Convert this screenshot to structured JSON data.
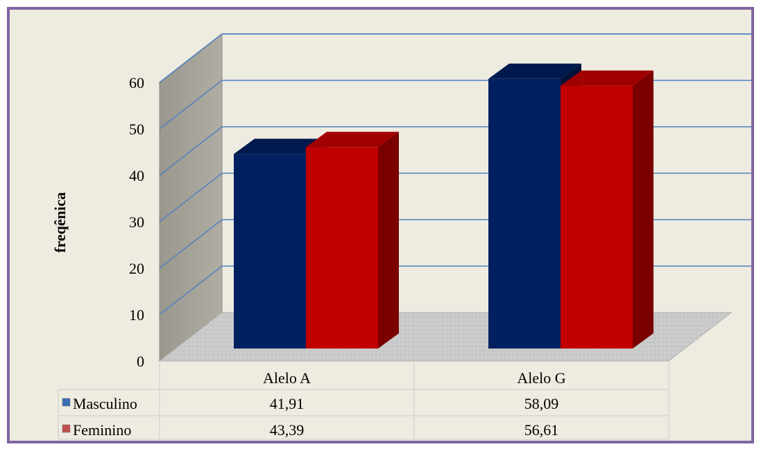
{
  "chart_data": {
    "type": "bar",
    "style": "3d-clustered-column-with-data-table",
    "categories": [
      "Alelo A",
      "Alelo G"
    ],
    "series": [
      {
        "name": "Masculino",
        "values": [
          "41,91",
          "58,09"
        ],
        "numeric": [
          41.91,
          58.09
        ],
        "color": "#002060",
        "side_color": "#00123a",
        "top_color": "#001a4d"
      },
      {
        "name": "Feminino",
        "values": [
          "43,39",
          "56,61"
        ],
        "numeric": [
          43.39,
          56.61
        ],
        "color": "#c00000",
        "side_color": "#7a0000",
        "top_color": "#a00000"
      }
    ],
    "ylabel": "freqênica",
    "yticks": [
      0,
      10,
      20,
      30,
      40,
      50,
      60
    ],
    "ylim": [
      0,
      60
    ],
    "grid": true,
    "legend": "data-table-left",
    "colors": {
      "frame_border": "#8064a2",
      "background": "#eeebe1",
      "gridline": "#4f81bd",
      "back_wall": "#a6a39a",
      "floor": "#c8c8c8"
    }
  }
}
